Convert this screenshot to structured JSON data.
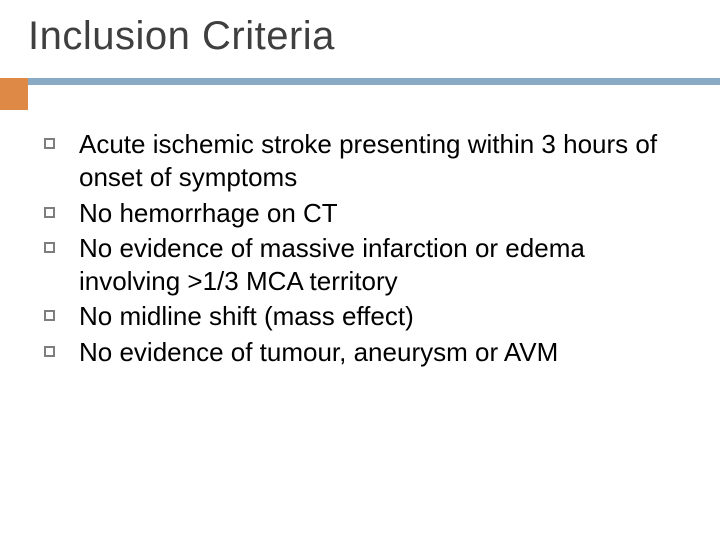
{
  "slide": {
    "title": "Inclusion Criteria",
    "title_fontsize": 40,
    "title_color": "#3f3f3f",
    "rule_color": "#8aa9c3",
    "rule_height": 7,
    "accent_color": "#de8946",
    "accent_width": 28,
    "accent_height": 32,
    "background_color": "#ffffff",
    "bullet_border_color": "#7e7e7e",
    "bullet_size": 11,
    "body_fontsize": 26,
    "body_color": "#000000",
    "items": [
      "Acute ischemic stroke presenting within 3 hours of onset of symptoms",
      "No hemorrhage on CT",
      "No evidence of massive infarction or edema involving >1/3 MCA territory",
      "No midline shift (mass effect)",
      "No evidence of tumour, aneurysm or AVM"
    ]
  }
}
